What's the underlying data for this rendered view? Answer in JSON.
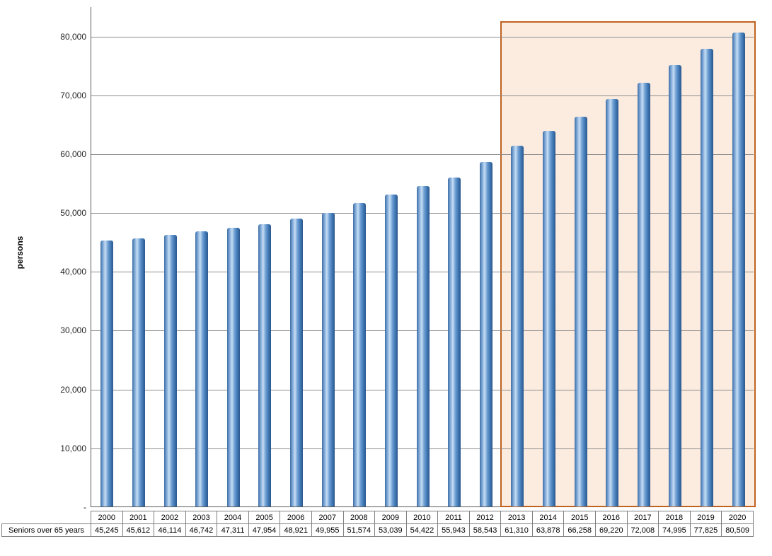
{
  "chart_data": {
    "type": "bar",
    "title": "",
    "xlabel": "",
    "ylabel": "persons",
    "categories": [
      "2000",
      "2001",
      "2002",
      "2003",
      "2004",
      "2005",
      "2006",
      "2007",
      "2008",
      "2009",
      "2010",
      "2011",
      "2012",
      "2013",
      "2014",
      "2015",
      "2016",
      "2017",
      "2018",
      "2019",
      "2020"
    ],
    "series": [
      {
        "name": "Seniors over 65 years",
        "values": [
          45245,
          45612,
          46114,
          46742,
          47311,
          47954,
          48921,
          49955,
          51574,
          53039,
          54422,
          55943,
          58543,
          61310,
          63878,
          66258,
          69220,
          72008,
          74995,
          77825,
          80509
        ]
      }
    ],
    "ylim": [
      0,
      85000
    ],
    "yticks": [
      {
        "value": 0,
        "label": "-"
      },
      {
        "value": 10000,
        "label": "10,000"
      },
      {
        "value": 20000,
        "label": "20,000"
      },
      {
        "value": 30000,
        "label": "30,000"
      },
      {
        "value": 40000,
        "label": "40,000"
      },
      {
        "value": 50000,
        "label": "50,000"
      },
      {
        "value": 60000,
        "label": "60,000"
      },
      {
        "value": 70000,
        "label": "70,000"
      },
      {
        "value": 80000,
        "label": "80,000"
      }
    ],
    "grid": true,
    "legend": "none",
    "highlight": {
      "from": "2013",
      "to": "2020",
      "fill": "#fcecdf",
      "border": "#bf6321"
    }
  },
  "table": {
    "row_header": "Seniors over 65 years",
    "values": [
      "45,245",
      "45,612",
      "46,114",
      "46,742",
      "47,311",
      "47,954",
      "48,921",
      "49,955",
      "51,574",
      "53,039",
      "54,422",
      "55,943",
      "58,543",
      "61,310",
      "63,878",
      "66,258",
      "69,220",
      "72,008",
      "74,995",
      "77,825",
      "80,509"
    ]
  },
  "colors": {
    "bar": "#4f81bd",
    "gridline": "#8c8c8c",
    "axis": "#595959",
    "highlight_fill": "#fcecdf",
    "highlight_border": "#bf6321"
  }
}
